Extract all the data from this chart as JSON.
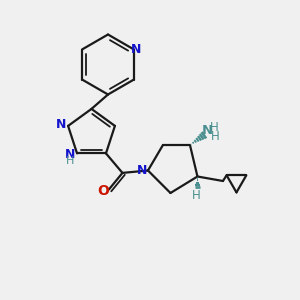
{
  "bg_color": "#f0f0f0",
  "bond_color": "#1a1a1a",
  "N_color": "#1414cc",
  "O_color": "#cc1400",
  "NH_color": "#4a8f8f",
  "fig_width": 3.0,
  "fig_height": 3.0,
  "dpi": 100,
  "xlim": [
    0,
    10
  ],
  "ylim": [
    0,
    10
  ]
}
